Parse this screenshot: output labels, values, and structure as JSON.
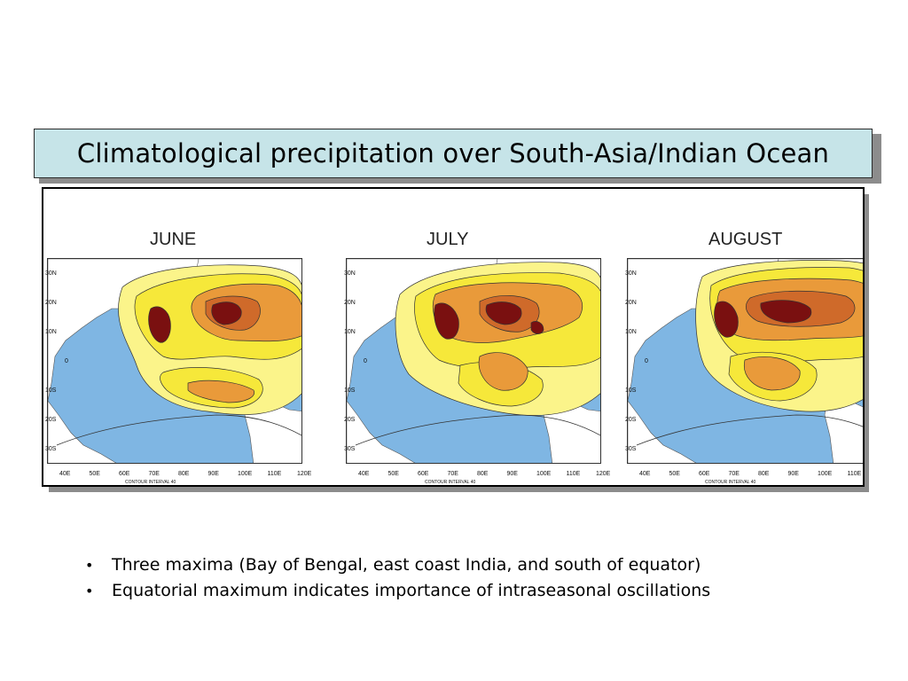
{
  "title": "Climatological precipitation over South-Asia/Indian Ocean",
  "panels": [
    {
      "month": "JUNE",
      "contour_note": "CONTOUR INTERVAL 40"
    },
    {
      "month": "JULY",
      "contour_note": "CONTOUR INTERVAL 40"
    },
    {
      "month": "AUGUST",
      "contour_note": "CONTOUR INTERVAL 40"
    }
  ],
  "lat_labels": [
    "30N",
    "20N",
    "10N",
    "0",
    "10S",
    "20S",
    "30S"
  ],
  "lon_labels": [
    "40E",
    "50E",
    "60E",
    "70E",
    "80E",
    "90E",
    "100E",
    "110E",
    "120E"
  ],
  "bullets": [
    "Three maxima (Bay of Bengal, east coast India, and south of equator)",
    "Equatorial maximum indicates importance of intraseasonal oscillations"
  ],
  "colors": {
    "ocean": "#7fb6e3",
    "land": "#ffffff",
    "band_80": "#fbf48a",
    "band_120": "#f6e83a",
    "band_200": "#e99a3a",
    "band_240": "#cf6a2a",
    "band_max": "#7a1010",
    "title_bg": "#c6e4e8"
  }
}
